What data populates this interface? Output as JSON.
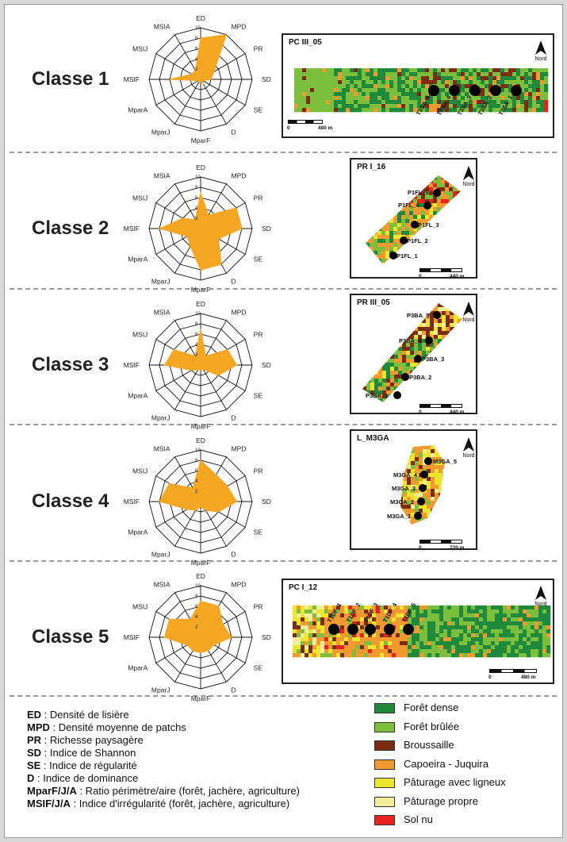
{
  "axes": [
    "ED",
    "MPD",
    "PR",
    "SD",
    "SE",
    "D",
    "MparF",
    "MparJ",
    "MparA",
    "MSIF",
    "MSIJ",
    "MSIA"
  ],
  "ticks": [
    "2",
    "4",
    "6",
    "8",
    "10"
  ],
  "radar_max": 10,
  "colors": {
    "radar_fill": "#f5a623",
    "dense": "#1f8a3c",
    "burnt": "#7bbf3d",
    "brush": "#7b2d14",
    "capoeira": "#f29a30",
    "pasture_trees": "#ede62e",
    "pasture_clean": "#f4ee9c",
    "bare": "#e8231f"
  },
  "classes": [
    {
      "label": "Classe 1",
      "values": [
        8,
        10,
        3,
        2,
        0.5,
        1,
        0.5,
        0.5,
        0.5,
        6,
        2,
        2
      ],
      "map": {
        "title": "PC III_05",
        "north": "Nord",
        "scale": {
          "zero": "0",
          "end": "480 m"
        },
        "points": [
          "T3SA_5",
          "T3SA_4",
          "T3SA_3",
          "T3SA_2",
          "T3SA_1"
        ]
      }
    },
    {
      "label": "Classe 2",
      "values": [
        7,
        3,
        8,
        8,
        4,
        8,
        8,
        4,
        3,
        8,
        4,
        2
      ],
      "map": {
        "title": "PR I_16",
        "north": "Nord",
        "scale": {
          "zero": "0",
          "end": "440 m"
        },
        "points": [
          "P1FL_5",
          "P1FL_4",
          "P1FL_3",
          "P1FL_2",
          "P1FL_1"
        ]
      }
    },
    {
      "label": "Classe 3",
      "values": [
        7,
        2,
        6,
        7,
        4,
        1,
        1,
        1,
        2,
        7,
        6,
        2
      ],
      "map": {
        "title": "PR III_05",
        "north": "Nord",
        "scale": {
          "zero": "0",
          "end": "440 m"
        },
        "points": [
          "P3BA_5",
          "P3BA_4",
          "P3BA_3",
          "P3BA_2",
          "P3BA_1"
        ]
      }
    },
    {
      "label": "Classe 4",
      "values": [
        8,
        6,
        6,
        7,
        4,
        2,
        1,
        2,
        3,
        8,
        7,
        3
      ],
      "map": {
        "title": "L_M3GA",
        "north": "Nord",
        "scale": {
          "zero": "0",
          "end": "720 m"
        },
        "points": [
          "M3GA_5",
          "M3GA_4",
          "M3GA_3",
          "M3GA_2",
          "M3GA_1"
        ]
      }
    },
    {
      "label": "Classe 5",
      "values": [
        7,
        7,
        5,
        6,
        3,
        3,
        3,
        3,
        3,
        7,
        7,
        4
      ],
      "map": {
        "title": "PC I_12",
        "north": "Nord",
        "scale": {
          "zero": "0",
          "end": "480 m"
        },
        "points": [
          "T1DF_1",
          "T1DF_2",
          "T1DF_3",
          "T1DF_4",
          "T1DF_5"
        ]
      }
    }
  ],
  "definitions": [
    {
      "abbr": "ED",
      "text": " : Densité de lisière"
    },
    {
      "abbr": "MPD",
      "text": " : Densité moyenne de patchs"
    },
    {
      "abbr": "PR",
      "text": " : Richesse paysagère"
    },
    {
      "abbr": "SD",
      "text": " : Indice de Shannon"
    },
    {
      "abbr": "SE",
      "text": " : Indice de régularité"
    },
    {
      "abbr": "D",
      "text": " : Indice de dominance"
    },
    {
      "abbr": "MparF/J/A",
      "text": " : Ratio périmètre/aire (forêt, jachère, agriculture)"
    },
    {
      "abbr": "MSIF/J/A",
      "text": " : Indice d'irrégularité (forêt, jachère, agriculture)"
    }
  ],
  "landcover_legend": [
    {
      "label": "Forêt dense",
      "color": "#1f8a3c"
    },
    {
      "label": "Forêt brûlée",
      "color": "#7bbf3d"
    },
    {
      "label": "Broussaille",
      "color": "#7b2d14"
    },
    {
      "label": "Capoeira - Juquira",
      "color": "#f29a30"
    },
    {
      "label": "Pâturage avec ligneux",
      "color": "#ede62e"
    },
    {
      "label": "Pâturage propre",
      "color": "#f4ee9c"
    },
    {
      "label": "Sol nu",
      "color": "#e8231f"
    }
  ]
}
